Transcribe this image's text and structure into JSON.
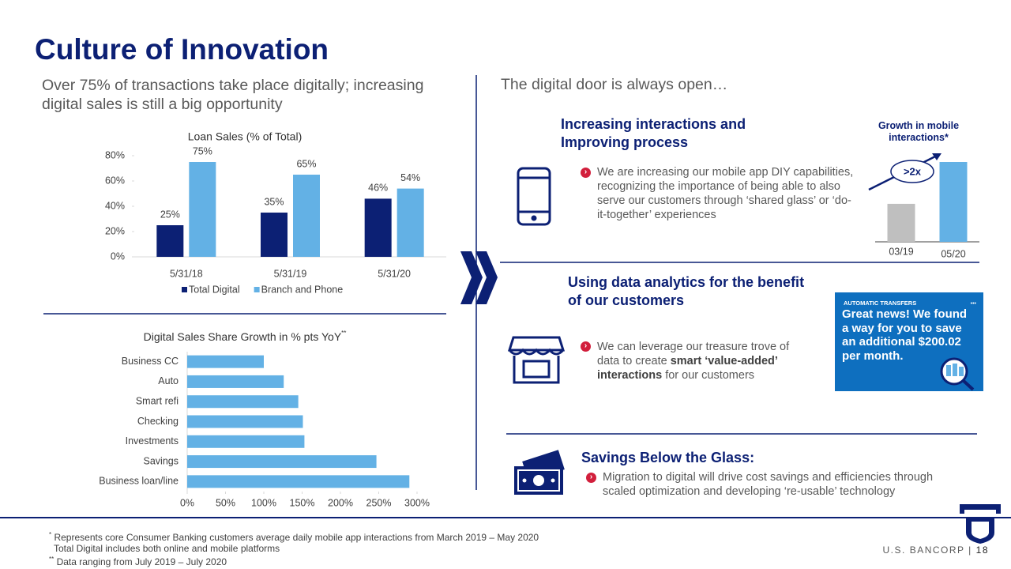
{
  "title": "Culture of Innovation",
  "left_heading": "Over 75% of transactions take place digitally; increasing digital sales is still a big opportunity",
  "right_heading": "The digital door is always open…",
  "chart_data": [
    {
      "type": "bar",
      "title": "Loan Sales (% of Total)",
      "categories": [
        "5/31/18",
        "5/31/19",
        "5/31/20"
      ],
      "series": [
        {
          "name": "Total Digital",
          "color": "#0c2074",
          "values": [
            25,
            35,
            46
          ],
          "value_labels": [
            "25%",
            "35%",
            "46%"
          ]
        },
        {
          "name": "Branch and Phone",
          "color": "#63b1e5",
          "values": [
            75,
            65,
            54
          ],
          "value_labels": [
            "75%",
            "65%",
            "54%"
          ]
        }
      ],
      "ylim": [
        0,
        80
      ],
      "yticks": [
        {
          "value": 0,
          "label": "0%"
        },
        {
          "value": 20,
          "label": "20%"
        },
        {
          "value": 40,
          "label": "40%"
        },
        {
          "value": 60,
          "label": "60%"
        },
        {
          "value": 80,
          "label": "80%"
        }
      ],
      "legend": "bottom"
    },
    {
      "type": "barh",
      "title": "Digital Sales Share Growth in % pts YoY",
      "title_mark": "**",
      "categories": [
        "Business CC",
        "Auto",
        "Smart refi",
        "Checking",
        "Investments",
        "Savings",
        "Business loan/line"
      ],
      "values": [
        100,
        126,
        145,
        151,
        153,
        247,
        290
      ],
      "color": "#63b1e5",
      "xlim": [
        0,
        300
      ],
      "xticks": [
        {
          "value": 0,
          "label": "0%"
        },
        {
          "value": 50,
          "label": "50%"
        },
        {
          "value": 100,
          "label": "100%"
        },
        {
          "value": 150,
          "label": "150%"
        },
        {
          "value": 200,
          "label": "200%"
        },
        {
          "value": 250,
          "label": "250%"
        },
        {
          "value": 300,
          "label": "300%"
        }
      ]
    },
    {
      "type": "bar",
      "title": "Growth in mobile interactions*",
      "categories": [
        "03/19",
        "05/20"
      ],
      "values": [
        1,
        2.1
      ],
      "colors": [
        "#bfbfbf",
        "#63b1e5"
      ],
      "annotation": ">2x"
    }
  ],
  "sections": [
    {
      "heading": "Increasing interactions and Improving process",
      "text_parts": [
        "We are increasing our mobile app DIY capabilities, recognizing the importance of being able to also serve our customers through ‘shared glass’ or ‘do-it-together’ experiences"
      ]
    },
    {
      "heading": "Using data analytics for the benefit of our customers",
      "text_parts": [
        "We can leverage our treasure trove of data to create ",
        "smart ‘value-added’ interactions",
        " for our customers"
      ]
    },
    {
      "heading": "Savings Below the Glass:",
      "text_parts": [
        "Migration to digital will drive cost savings and efficiencies through scaled optimization and developing ‘re-usable’ technology"
      ]
    }
  ],
  "card": {
    "label": "AUTOMATIC TRANSFERS",
    "menu": "•••",
    "message": "Great news! We found a way for you to save an additional $200.02 per month."
  },
  "footnotes": [
    {
      "mark": "*",
      "text": "Represents core Consumer Banking customers average daily mobile app interactions from March 2019 – May 2020"
    },
    {
      "text": "Total Digital includes both online and mobile platforms"
    },
    {
      "mark": "**",
      "text": "Data ranging from July 2019 – July 2020"
    }
  ],
  "footer": {
    "brand": "U.S. BANCORP",
    "separator": "|",
    "page": "18"
  }
}
